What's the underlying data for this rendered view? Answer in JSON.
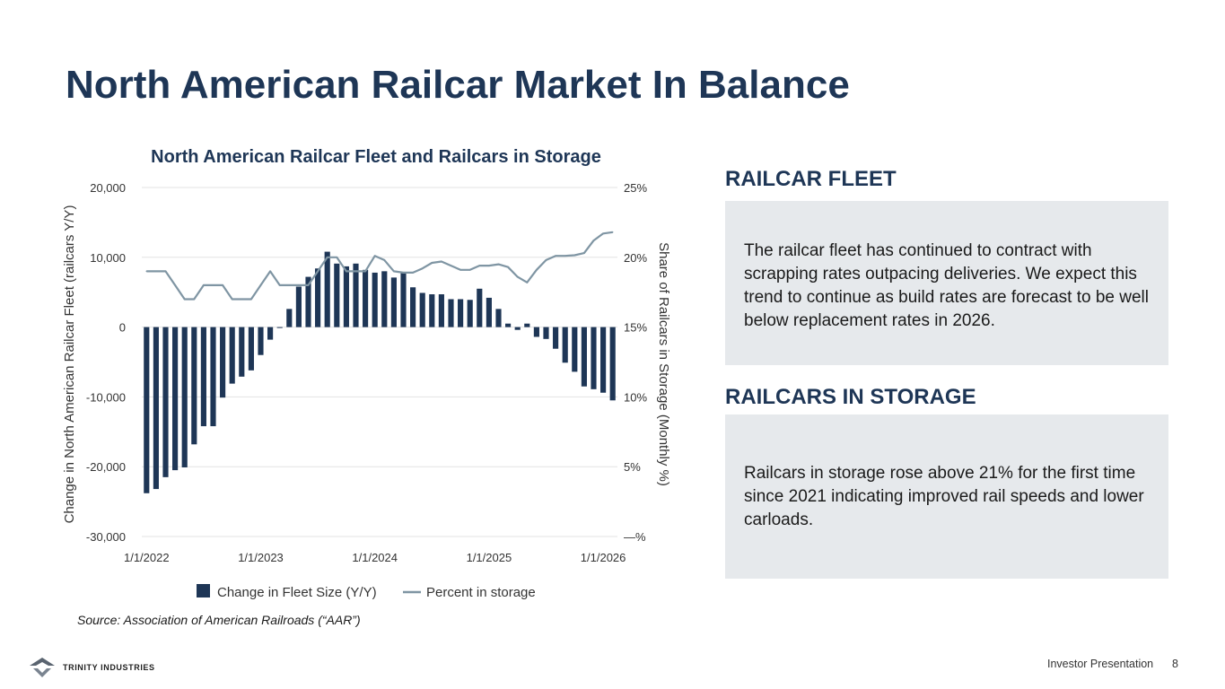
{
  "page": {
    "title": "North American Railcar Market In Balance",
    "source": "Source: Association of American Railroads (“AAR”)",
    "footer_label": "Investor Presentation",
    "page_number": "8",
    "logo_text": "TRINITY INDUSTRIES"
  },
  "panels": {
    "fleet": {
      "heading": "RAILCAR FLEET",
      "text": "The railcar fleet has continued to contract with scrapping rates outpacing deliveries. We expect this trend to continue as build rates are forecast to be well below replacement rates in 2026."
    },
    "storage": {
      "heading": "RAILCARS IN STORAGE",
      "text": "Railcars in storage rose above 21% for the first time since 2021 indicating improved rail speeds and lower carloads."
    }
  },
  "colors": {
    "bar": "#1e3656",
    "line": "#7f95a3",
    "grid": "#e3e3e3",
    "axis_text": "#333333"
  },
  "chart_data": {
    "type": "bar",
    "title": "North American Railcar Fleet and Railcars in Storage",
    "ylabel": "Change in North American Railcar Fleet (railcars Y/Y)",
    "y2label": "Share of Railcars in Storage (Monthly %)",
    "ylim": [
      -30000,
      20000
    ],
    "y2lim": [
      0,
      25
    ],
    "y_ticks": [
      {
        "value": 20000,
        "label": "20,000"
      },
      {
        "value": 10000,
        "label": "10,000"
      },
      {
        "value": 0,
        "label": "0"
      },
      {
        "value": -10000,
        "label": "-10,000"
      },
      {
        "value": -20000,
        "label": "-20,000"
      },
      {
        "value": -30000,
        "label": "-30,000"
      }
    ],
    "y2_ticks": [
      {
        "value": 25,
        "label": "25%"
      },
      {
        "value": 20,
        "label": "20%"
      },
      {
        "value": 15,
        "label": "15%"
      },
      {
        "value": 10,
        "label": "10%"
      },
      {
        "value": 5,
        "label": "5%"
      },
      {
        "value": 0,
        "label": "—%"
      }
    ],
    "x_ticks": [
      {
        "index": 0,
        "label": "1/1/2022"
      },
      {
        "index": 12,
        "label": "1/1/2023"
      },
      {
        "index": 24,
        "label": "1/1/2024"
      },
      {
        "index": 36,
        "label": "1/1/2025"
      },
      {
        "index": 48,
        "label": "1/1/2026"
      }
    ],
    "series": [
      {
        "name": "Change in Fleet Size (Y/Y)",
        "type": "bar",
        "axis": "left",
        "values": [
          -23800,
          -23200,
          -21500,
          -20500,
          -20100,
          -16800,
          -14200,
          -14200,
          -10100,
          -8100,
          -7100,
          -6200,
          -4000,
          -1800,
          -100,
          2600,
          5800,
          7200,
          8400,
          10800,
          9100,
          8700,
          9100,
          8200,
          7800,
          8000,
          7100,
          7800,
          5700,
          4900,
          4700,
          4700,
          4000,
          4000,
          3900,
          5500,
          4200,
          2600,
          500,
          -400,
          500,
          -1400,
          -1700,
          -3100,
          -5100,
          -6400,
          -8500,
          -8900,
          -9400,
          -10500
        ]
      },
      {
        "name": "Percent in storage",
        "type": "line",
        "axis": "right",
        "values": [
          19.0,
          19.0,
          19.0,
          18.0,
          17.0,
          17.0,
          18.0,
          18.0,
          18.0,
          17.0,
          17.0,
          17.0,
          18.0,
          19.0,
          18.0,
          18.0,
          18.0,
          18.0,
          19.0,
          20.0,
          20.0,
          19.0,
          19.0,
          19.0,
          20.1,
          19.8,
          19.0,
          18.9,
          18.9,
          19.2,
          19.6,
          19.7,
          19.4,
          19.1,
          19.1,
          19.4,
          19.4,
          19.5,
          19.3,
          18.6,
          18.2,
          19.1,
          19.8,
          20.1,
          20.1,
          20.15,
          20.3,
          21.2,
          21.7,
          21.8
        ]
      }
    ],
    "legend": [
      {
        "label": "Change in Fleet Size (Y/Y)",
        "kind": "bar"
      },
      {
        "label": "Percent in storage",
        "kind": "line"
      }
    ],
    "legend_position": "bottom"
  }
}
